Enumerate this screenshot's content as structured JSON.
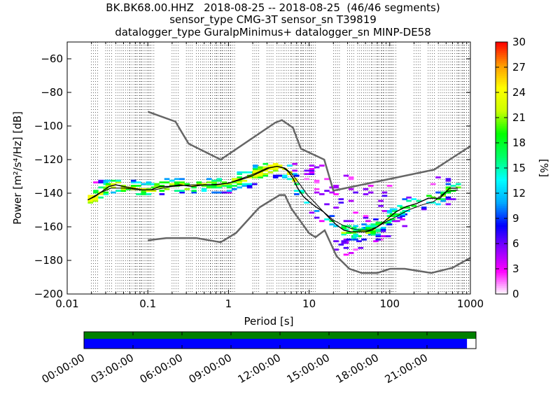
{
  "title": {
    "line1": "BK.BK68.00.HHZ   2018-08-25 -- 2018-08-25  (46/46 segments)",
    "line2": "sensor_type CMG-3T sensor_sn T39819",
    "line3": "datalogger_type GuralpMinimus+ datalogger_sn MINP-DE58"
  },
  "chart_data": {
    "type": "heatmap",
    "xlabel": "Period [s]",
    "ylabel": "Power [m²/s⁴/Hz] [dB]",
    "xscale": "log",
    "xlim": [
      0.01,
      1000
    ],
    "xticks": [
      0.01,
      0.1,
      1,
      10,
      100,
      1000
    ],
    "xtick_labels": [
      "0.01",
      "0.1",
      "1",
      "10",
      "100",
      "1000"
    ],
    "ylim": [
      -200,
      -50
    ],
    "yticks": [
      -200,
      -180,
      -160,
      -140,
      -120,
      -100,
      -80,
      -60
    ],
    "ytick_labels": [
      "−200",
      "−180",
      "−160",
      "−140",
      "−120",
      "−100",
      "−80",
      "−60"
    ],
    "colorbar": {
      "label": "[%]",
      "range": [
        0,
        30
      ],
      "ticks": [
        0,
        3,
        6,
        9,
        12,
        15,
        18,
        21,
        24,
        27,
        30
      ],
      "colormap": [
        "#ffffff",
        "#ff00ff",
        "#8a00ff",
        "#0000ff",
        "#00aaff",
        "#00ffff",
        "#00ff66",
        "#00ff00",
        "#ccff00",
        "#ffff00",
        "#ff9900",
        "#ff0000"
      ]
    },
    "nlnm": {
      "period": [
        0.1,
        0.17,
        0.4,
        0.8,
        1.24,
        2.4,
        4.3,
        5,
        6,
        10,
        12,
        15.6,
        21.9,
        31.6,
        45,
        70,
        101,
        154,
        328,
        600,
        1000
      ],
      "power": [
        -168,
        -166.7,
        -166.7,
        -169.2,
        -163.7,
        -148.6,
        -141.1,
        -141.1,
        -149,
        -163.8,
        -166.2,
        -162.1,
        -177.5,
        -185,
        -187.5,
        -187.5,
        -185,
        -185,
        -187.5,
        -184.4,
        -178.4
      ]
    },
    "nhnm": {
      "period": [
        0.1,
        0.22,
        0.32,
        0.8,
        3.8,
        4.6,
        6.3,
        7.9,
        15.4,
        20,
        354.8,
        1000
      ],
      "power": [
        -91.5,
        -97.4,
        -110.5,
        -120,
        -98,
        -96.5,
        -101,
        -113.5,
        -120,
        -138.5,
        -126,
        -112
      ]
    },
    "mode": {
      "period": [
        0.018,
        0.022,
        0.027,
        0.033,
        0.04,
        0.05,
        0.065,
        0.085,
        0.11,
        0.14,
        0.18,
        0.25,
        0.35,
        0.5,
        0.7,
        1.0,
        1.4,
        1.9,
        2.6,
        3.2,
        4.0,
        4.8,
        5.5,
        6.3,
        7.2,
        8.5,
        10,
        12,
        15,
        18,
        22,
        27,
        33,
        40,
        50,
        60,
        70,
        80,
        95,
        120,
        160,
        220,
        300,
        420,
        550,
        700
      ],
      "power": [
        -144,
        -142,
        -139,
        -136,
        -135,
        -136,
        -137,
        -138,
        -138,
        -136,
        -136,
        -135,
        -136,
        -135,
        -135,
        -134,
        -132,
        -130,
        -127,
        -125,
        -124,
        -125,
        -127,
        -131,
        -137,
        -142,
        -145,
        -148,
        -151,
        -155,
        -159,
        -162,
        -163,
        -163,
        -163,
        -162,
        -160,
        -158,
        -155,
        -151,
        -148,
        -146,
        -143,
        -143,
        -137,
        -137
      ]
    },
    "mean": {
      "period": [
        0.018,
        0.025,
        0.035,
        0.05,
        0.08,
        0.12,
        0.2,
        0.35,
        0.6,
        1.0,
        1.5,
        2.2,
        3.0,
        4.0,
        5.0,
        6.0,
        7.5,
        9.5,
        12,
        15,
        20,
        26,
        33,
        42,
        55,
        70,
        90,
        120,
        170,
        250,
        350,
        500,
        700
      ],
      "power": [
        -144,
        -140,
        -137,
        -137,
        -138,
        -138,
        -136,
        -135,
        -135,
        -134,
        -131,
        -128,
        -125,
        -124,
        -125,
        -128,
        -134,
        -141,
        -146,
        -151,
        -156,
        -159,
        -161,
        -162,
        -162,
        -160,
        -157,
        -154,
        -150,
        -147,
        -145,
        -139,
        -138
      ]
    },
    "clusters": [
      {
        "p0": 0.018,
        "p1": 0.021,
        "db0": -146,
        "db1": -141,
        "weight": 0.8
      },
      {
        "p0": 0.021,
        "p1": 0.03,
        "db0": -143,
        "db1": -132,
        "weight": 0.55
      },
      {
        "p0": 0.03,
        "p1": 0.12,
        "db0": -141,
        "db1": -132,
        "weight": 0.5
      },
      {
        "p0": 0.12,
        "p1": 0.3,
        "db0": -141,
        "db1": -130,
        "weight": 0.45
      },
      {
        "p0": 0.3,
        "p1": 1.1,
        "db0": -140,
        "db1": -131,
        "weight": 0.4
      },
      {
        "p0": 1.1,
        "p1": 2.0,
        "db0": -137,
        "db1": -127,
        "weight": 0.55
      },
      {
        "p0": 2.0,
        "p1": 4.0,
        "db0": -131,
        "db1": -122,
        "weight": 0.75
      },
      {
        "p0": 4.0,
        "p1": 6.5,
        "db0": -133,
        "db1": -122,
        "weight": 0.6
      },
      {
        "p0": 6.5,
        "p1": 10,
        "db0": -146,
        "db1": -126,
        "weight": 0.3
      },
      {
        "p0": 10,
        "p1": 20,
        "db0": -160,
        "db1": -121,
        "weight": 0.12
      },
      {
        "p0": 20,
        "p1": 35,
        "db0": -178,
        "db1": -127,
        "weight": 0.12
      },
      {
        "p0": 25,
        "p1": 50,
        "db0": -170,
        "db1": -158,
        "weight": 0.45
      },
      {
        "p0": 35,
        "p1": 80,
        "db0": -175,
        "db1": -135,
        "weight": 0.1
      },
      {
        "p0": 50,
        "p1": 90,
        "db0": -168,
        "db1": -155,
        "weight": 0.4
      },
      {
        "p0": 80,
        "p1": 160,
        "db0": -160,
        "db1": -135,
        "weight": 0.14
      },
      {
        "p0": 100,
        "p1": 160,
        "db0": -157,
        "db1": -148,
        "weight": 0.35
      },
      {
        "p0": 160,
        "p1": 320,
        "db0": -151,
        "db1": -140,
        "weight": 0.3
      },
      {
        "p0": 320,
        "p1": 700,
        "db0": -147,
        "db1": -130,
        "weight": 0.3
      }
    ],
    "grid": "vertical dotted lines at each log decade subdivision",
    "coverage": {
      "labels": [
        "00:00:00",
        "03:00:00",
        "06:00:00",
        "09:00:00",
        "12:00:00",
        "15:00:00",
        "18:00:00",
        "21:00:00"
      ],
      "top_bar_color": "#008000",
      "bottom_bar_color": "#0000ff",
      "top_fraction": 1.0,
      "bottom_fraction": 0.977
    }
  }
}
